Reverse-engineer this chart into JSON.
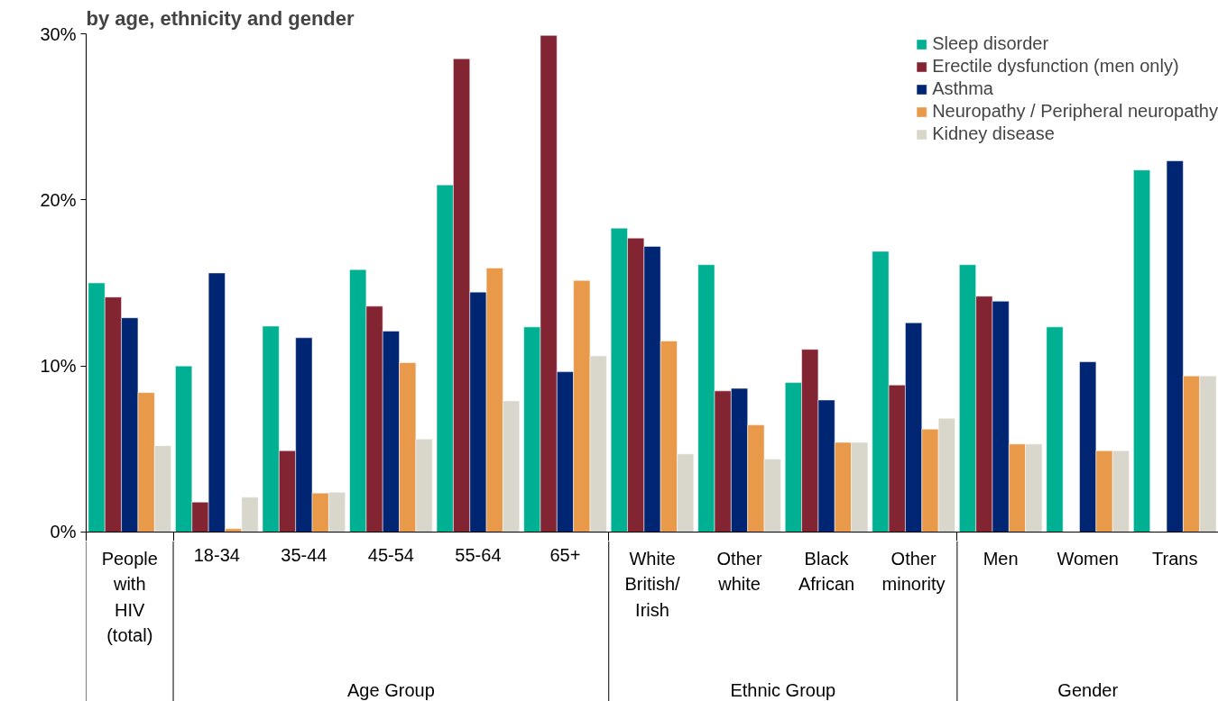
{
  "chart_data": {
    "type": "bar",
    "title": "by age, ethnicity and gender",
    "categories": [
      "People\nwith\nHIV\n(total)",
      "18-34",
      "35-44",
      "45-54",
      "55-64",
      "65+",
      "White\nBritish/\nIrish",
      "Other\nwhite",
      "Black\nAfrican",
      "Other\nminority",
      "Men",
      "Women",
      "Trans"
    ],
    "series": [
      {
        "name": "Sleep disorder",
        "color": "#00b092",
        "values": [
          15.0,
          10.0,
          12.4,
          15.8,
          20.9,
          12.35,
          18.3,
          16.1,
          9.0,
          16.9,
          16.1,
          12.35,
          21.8
        ]
      },
      {
        "name": "Erectile dysfunction (men only)",
        "color": "#832433",
        "values": [
          14.15,
          1.8,
          4.9,
          13.6,
          28.5,
          29.9,
          17.7,
          8.5,
          11.0,
          8.85,
          14.2,
          null,
          null
        ]
      },
      {
        "name": "Asthma",
        "color": "#002573",
        "values": [
          12.9,
          15.6,
          11.7,
          12.1,
          14.45,
          9.65,
          17.2,
          8.65,
          7.95,
          12.6,
          13.9,
          10.25,
          22.35
        ]
      },
      {
        "name": "Neuropathy / Peripheral neuropathy",
        "color": "#e8994a",
        "values": [
          8.4,
          0.2,
          2.35,
          10.2,
          15.9,
          15.15,
          11.5,
          6.45,
          5.4,
          6.2,
          5.3,
          4.9,
          9.4
        ]
      },
      {
        "name": "Kidney disease",
        "color": "#d9d7cb",
        "values": [
          5.2,
          2.1,
          2.4,
          5.6,
          7.9,
          10.6,
          4.7,
          4.4,
          5.4,
          6.85,
          5.3,
          4.9,
          9.4
        ]
      }
    ],
    "ylim": [
      0,
      30
    ],
    "yticks": [
      {
        "value": 0,
        "label": "0%"
      },
      {
        "value": 10,
        "label": "10%"
      },
      {
        "value": 20,
        "label": "20%"
      },
      {
        "value": 30,
        "label": "30%"
      }
    ],
    "annotations": [
      "Age Group",
      "Ethnic Group",
      "Gender"
    ],
    "grid": false,
    "legend": "top right"
  }
}
